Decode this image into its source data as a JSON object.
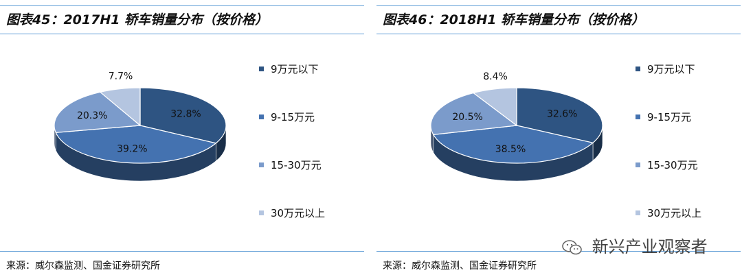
{
  "colors": {
    "c1": "#2e5482",
    "c2": "#4472b0",
    "c3": "#7b9bcb",
    "c4": "#b4c5e0"
  },
  "watermark": {
    "text": "新兴产业观察者",
    "icon": "wechat-icon"
  },
  "panels": [
    {
      "title": "图表45：2017H1 轿车销量分布（按价格）",
      "source": "来源：威尔森监测、国金证券研究所",
      "chart_data": {
        "type": "pie",
        "title": "图表45：2017H1 轿车销量分布（按价格）",
        "categories": [
          "9万元以下",
          "9-15万元",
          "15-30万元",
          "30万元以上"
        ],
        "values": [
          32.8,
          39.2,
          20.3,
          7.7
        ],
        "labels": [
          "32.8%",
          "39.2%",
          "20.3%",
          "7.7%"
        ],
        "legend_position": "right"
      }
    },
    {
      "title": "图表46：2018H1 轿车销量分布（按价格）",
      "source": "来源：威尔森监测、国金证券研究所",
      "chart_data": {
        "type": "pie",
        "title": "图表46：2018H1 轿车销量分布（按价格）",
        "categories": [
          "9万元以下",
          "9-15万元",
          "15-30万元",
          "30万元以上"
        ],
        "values": [
          32.6,
          38.5,
          20.5,
          8.4
        ],
        "labels": [
          "32.6%",
          "38.5%",
          "20.5%",
          "8.4%"
        ],
        "legend_position": "right"
      }
    }
  ]
}
